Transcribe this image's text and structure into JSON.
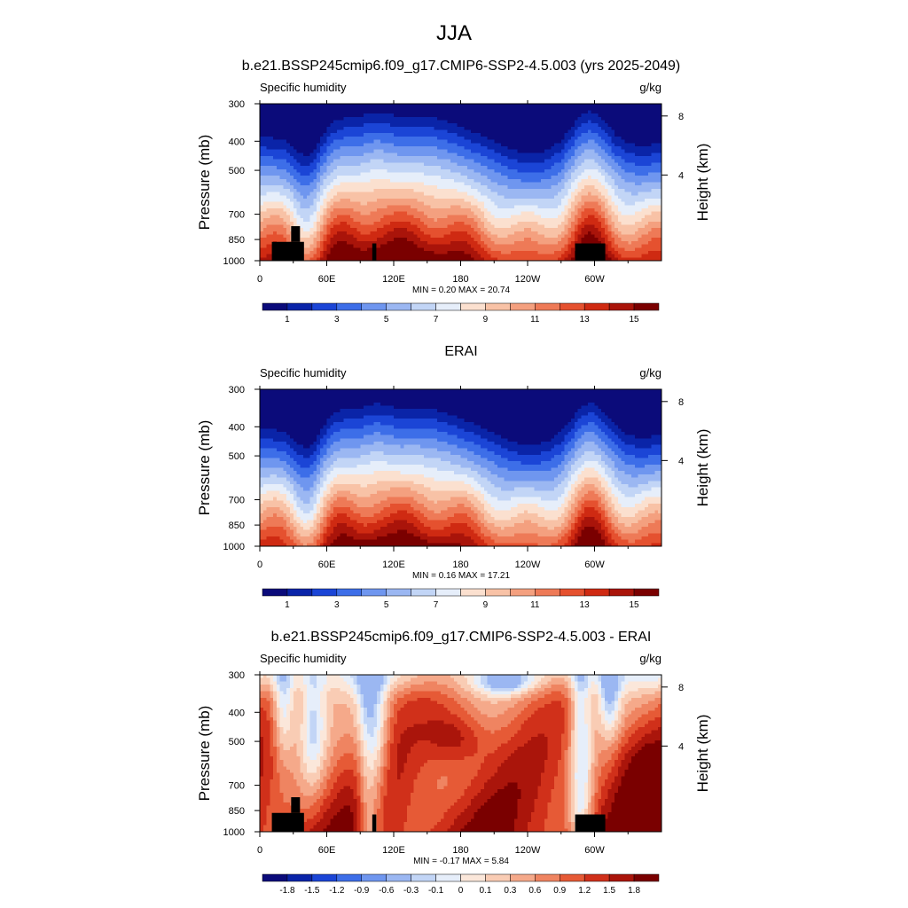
{
  "figure": {
    "season": "JJA"
  },
  "colors": {
    "full": [
      "#0b0b7a",
      "#0a24a8",
      "#1b45d6",
      "#3d6ee8",
      "#6f96ef",
      "#9bb7f2",
      "#c2d5f6",
      "#e6eefa",
      "#fbe0cf",
      "#f8c2a6",
      "#f4a07f",
      "#ee7a57",
      "#e5512f",
      "#cf2a12",
      "#a9140a",
      "#7a0000"
    ],
    "diff": [
      "#0b0b7a",
      "#0a24a8",
      "#1b45d6",
      "#3d6ee8",
      "#6f96ef",
      "#9bb7f2",
      "#c2d5f6",
      "#e6eefa",
      "#fbe7da",
      "#f9ccb4",
      "#f5a98a",
      "#ef8461",
      "#e65a36",
      "#d0301a",
      "#aa150b",
      "#7a0000"
    ],
    "land": "#000000"
  },
  "chart_data": [
    {
      "type": "heatmap",
      "title": "b.e21.BSSP245cmip6.f09_g17.CMIP6-SSP2-4.5.003 (yrs 2025-2049)",
      "left_label": "Specific humidity",
      "right_label": "g/kg",
      "ylabel": "Pressure (mb)",
      "ylabel_right": "Height (km)",
      "x_ticks": [
        "0",
        "60E",
        "120E",
        "180",
        "120W",
        "60W"
      ],
      "y_ticks": [
        "300",
        "400",
        "500",
        "700",
        "850",
        "1000"
      ],
      "y_right_ticks": [
        "8",
        "4"
      ],
      "min_label": "MIN =   0.20  MAX =  20.74",
      "colorbar_labels": [
        "1",
        "3",
        "5",
        "7",
        "9",
        "11",
        "13",
        "15"
      ],
      "kind": "full",
      "land_mask": true
    },
    {
      "type": "heatmap",
      "title": "ERAI",
      "left_label": "Specific humidity",
      "right_label": "g/kg",
      "ylabel": "Pressure (mb)",
      "ylabel_right": "Height (km)",
      "x_ticks": [
        "0",
        "60E",
        "120E",
        "180",
        "120W",
        "60W"
      ],
      "y_ticks": [
        "300",
        "400",
        "500",
        "700",
        "850",
        "1000"
      ],
      "y_right_ticks": [
        "8",
        "4"
      ],
      "min_label": "MIN =   0.16  MAX =  17.21",
      "colorbar_labels": [
        "1",
        "3",
        "5",
        "7",
        "9",
        "11",
        "13",
        "15"
      ],
      "kind": "full",
      "land_mask": false
    },
    {
      "type": "heatmap",
      "title": "b.e21.BSSP245cmip6.f09_g17.CMIP6-SSP2-4.5.003 - ERAI",
      "left_label": "Specific humidity",
      "right_label": "g/kg",
      "ylabel": "Pressure (mb)",
      "ylabel_right": "Height (km)",
      "x_ticks": [
        "0",
        "60E",
        "120E",
        "180",
        "120W",
        "60W"
      ],
      "y_ticks": [
        "300",
        "400",
        "500",
        "700",
        "850",
        "1000"
      ],
      "y_right_ticks": [
        "8",
        "4"
      ],
      "min_label": "MIN =  -0.17  MAX =   5.84",
      "colorbar_labels": [
        "-1.8",
        "-1.5",
        "-1.2",
        "-0.9",
        "-0.6",
        "-0.3",
        "-0.1",
        "0",
        "0.1",
        "0.3",
        "0.6",
        "0.9",
        "1.2",
        "1.5",
        "1.8"
      ],
      "kind": "diff",
      "land_mask": true
    }
  ]
}
